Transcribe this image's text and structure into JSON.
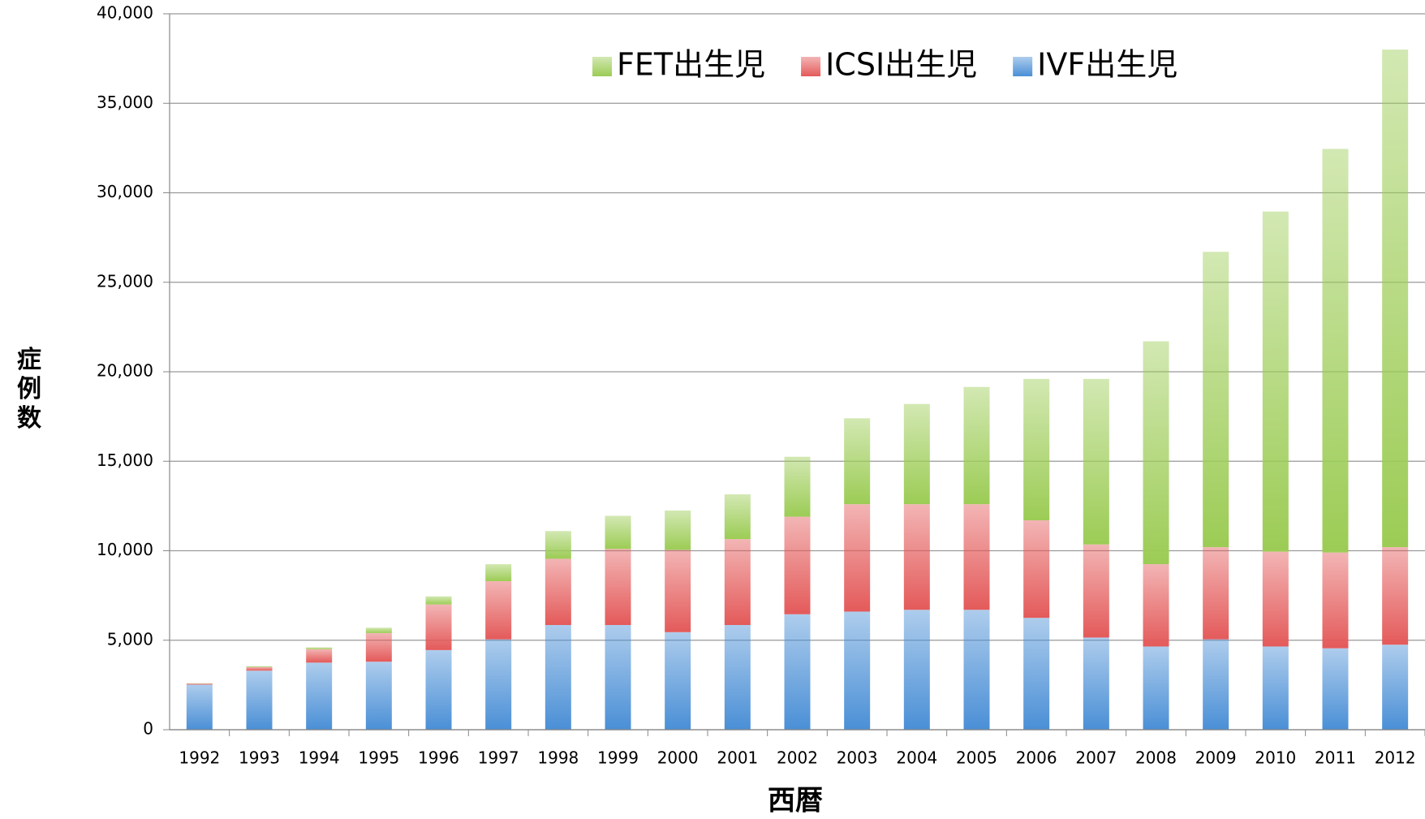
{
  "chart_data": {
    "type": "stacked-bar",
    "xlabel": "西暦",
    "ylabel": "症例数",
    "categories": [
      "1992",
      "1993",
      "1994",
      "1995",
      "1996",
      "1997",
      "1998",
      "1999",
      "2000",
      "2001",
      "2002",
      "2003",
      "2004",
      "2005",
      "2006",
      "2007",
      "2008",
      "2009",
      "2010",
      "2011",
      "2012"
    ],
    "series": [
      {
        "name": "IVF出生児",
        "color": "#4a8fd6",
        "values": [
          2520,
          3300,
          3750,
          3800,
          4450,
          5050,
          5850,
          5850,
          5450,
          5850,
          6450,
          6600,
          6700,
          6700,
          6250,
          5150,
          4650,
          5050,
          4650,
          4550,
          4750
        ]
      },
      {
        "name": "ICSI出生児",
        "color": "#e45a5a",
        "values": [
          60,
          200,
          750,
          1600,
          2550,
          3250,
          3700,
          4250,
          4600,
          4800,
          5450,
          6000,
          5900,
          5900,
          5450,
          5200,
          4600,
          5150,
          5300,
          5350,
          5450
        ]
      },
      {
        "name": "FET出生児",
        "color": "#9ccc55",
        "values": [
          20,
          50,
          100,
          300,
          450,
          950,
          1550,
          1850,
          2200,
          2500,
          3350,
          4800,
          5600,
          6550,
          7900,
          9250,
          12450,
          16500,
          19000,
          22550,
          27800
        ]
      }
    ],
    "ylim": [
      0,
      40000
    ],
    "yticks": [
      0,
      {
        "value": 5000,
        "label": "5,000"
      },
      {
        "value": 10000,
        "label": "10,000"
      },
      {
        "value": 15000,
        "label": "15,000"
      },
      {
        "value": 20000,
        "label": "20,000"
      },
      {
        "value": 25000,
        "label": "25,000"
      },
      {
        "value": 30000,
        "label": "30,000"
      },
      {
        "value": 35000,
        "label": "35,000"
      },
      {
        "value": 40000,
        "label": "40,000"
      }
    ],
    "grid": true,
    "legend": "top-right"
  }
}
